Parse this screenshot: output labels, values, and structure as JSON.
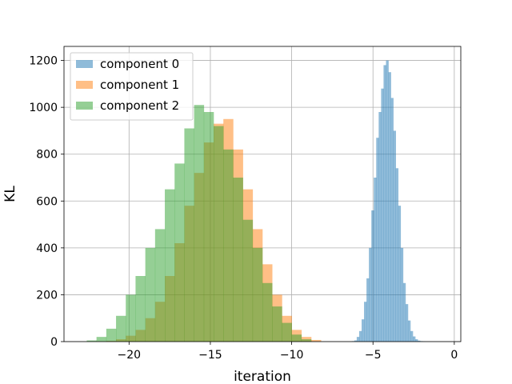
{
  "chart_data": {
    "type": "histogram",
    "title": "",
    "xlabel": "iteration",
    "ylabel": "KL",
    "xlim": [
      -24,
      0.4
    ],
    "ylim": [
      0,
      1260
    ],
    "xticks": [
      -20,
      -15,
      -10,
      -5,
      0
    ],
    "yticks": [
      0,
      200,
      400,
      600,
      800,
      1000,
      1200
    ],
    "grid": true,
    "legend_position": "top-left",
    "series": [
      {
        "name": "component 0",
        "color": "#1f77b4",
        "alpha": 0.5,
        "bin_edges": [
          -6.3,
          -6.15,
          -6.0,
          -5.85,
          -5.7,
          -5.55,
          -5.4,
          -5.25,
          -5.1,
          -4.95,
          -4.8,
          -4.65,
          -4.5,
          -4.35,
          -4.2,
          -4.05,
          -3.9,
          -3.75,
          -3.6,
          -3.45,
          -3.3,
          -3.15,
          -3.0,
          -2.85,
          -2.7,
          -2.55,
          -2.4,
          -2.25,
          -2.1,
          -1.95,
          -1.8
        ],
        "counts": [
          2,
          5,
          20,
          45,
          95,
          170,
          270,
          400,
          560,
          700,
          870,
          980,
          1080,
          1180,
          1200,
          1150,
          1040,
          900,
          740,
          580,
          400,
          250,
          160,
          90,
          45,
          22,
          10,
          4,
          2,
          1
        ]
      },
      {
        "name": "component 1",
        "color": "#ff7f0e",
        "alpha": 0.5,
        "bin_edges": [
          -22.0,
          -21.4,
          -20.8,
          -20.2,
          -19.6,
          -19.0,
          -18.4,
          -17.8,
          -17.2,
          -16.6,
          -16.0,
          -15.4,
          -14.8,
          -14.2,
          -13.6,
          -13.0,
          -12.4,
          -11.8,
          -11.2,
          -10.6,
          -10.0,
          -9.4,
          -8.8,
          -8.2
        ],
        "counts": [
          1,
          3,
          10,
          25,
          50,
          100,
          170,
          280,
          420,
          580,
          720,
          850,
          930,
          950,
          820,
          650,
          480,
          330,
          200,
          110,
          50,
          20,
          7
        ]
      },
      {
        "name": "component 2",
        "color": "#2ca02c",
        "alpha": 0.5,
        "bin_edges": [
          -22.6,
          -22.0,
          -21.4,
          -20.8,
          -20.2,
          -19.6,
          -19.0,
          -18.4,
          -17.8,
          -17.2,
          -16.6,
          -16.0,
          -15.4,
          -14.8,
          -14.2,
          -13.6,
          -13.0,
          -12.4,
          -11.8,
          -11.2,
          -10.6,
          -10.0,
          -9.4,
          -8.8
        ],
        "counts": [
          5,
          20,
          55,
          110,
          200,
          280,
          400,
          480,
          650,
          760,
          910,
          1010,
          980,
          920,
          820,
          700,
          520,
          400,
          250,
          150,
          80,
          30,
          10
        ]
      }
    ]
  }
}
